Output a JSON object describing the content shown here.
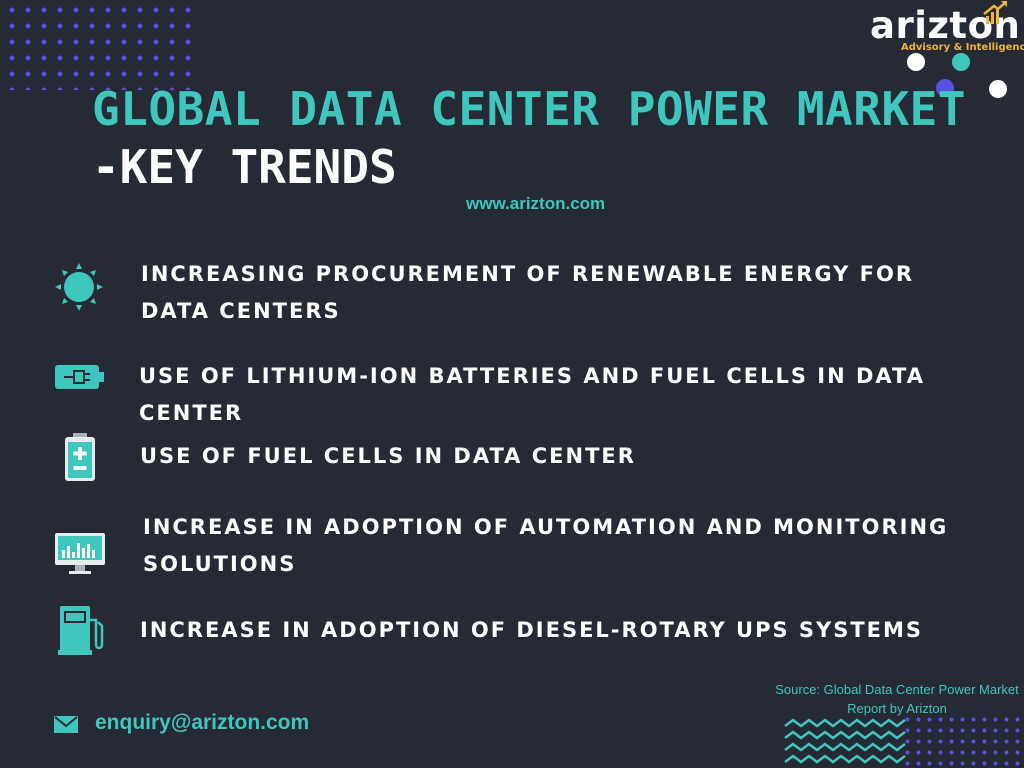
{
  "brand": {
    "name": "arizton",
    "tagline": "Advisory & Intelligence"
  },
  "title": {
    "line1": "GLOBAL DATA CENTER POWER MARKET",
    "line2": "-KEY TRENDS"
  },
  "website": "www.arizton.com",
  "trends": [
    {
      "icon": "sun-icon",
      "line1": "Increasing procurement of renewable energy for",
      "line2": "data centers"
    },
    {
      "icon": "battery-plug-icon",
      "line1": "Use of lithium-ion batteries and fuel cells in data center",
      "line2": ""
    },
    {
      "icon": "fuel-cell-icon",
      "line1": "Use of fuel cells in data center",
      "line2": ""
    },
    {
      "icon": "monitor-chart-icon",
      "line1": "Increase in adoption of automation and monitoring",
      "line2": "solutions"
    },
    {
      "icon": "fuel-pump-icon",
      "line1": "Increase in adoption of diesel-rotary UPS systems",
      "line2": ""
    }
  ],
  "source": {
    "line1": "Source: Global Data Center Power Market",
    "line2": "Report by Arizton"
  },
  "email": "enquiry@arizton.com",
  "colors": {
    "background": "#252a35",
    "accent": "#3fc7be",
    "dots": "#5b4fe0",
    "logo_orange": "#f1b33a",
    "text": "#ffffff"
  }
}
